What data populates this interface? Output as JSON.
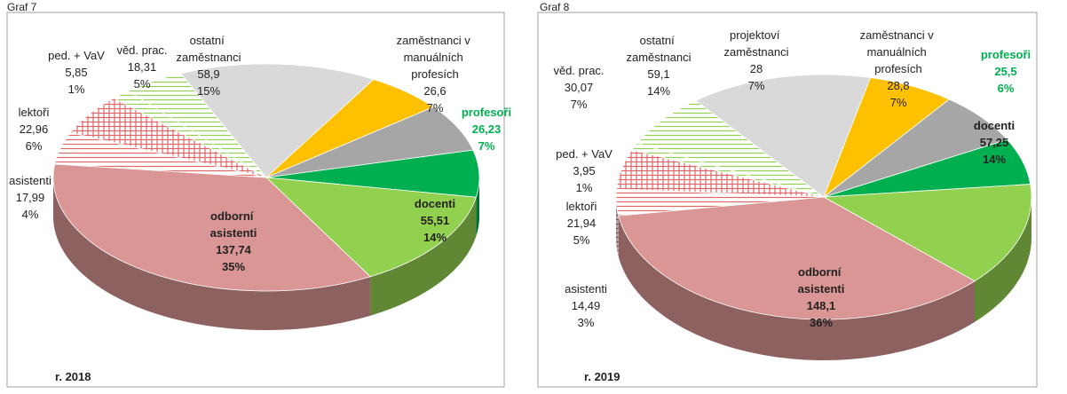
{
  "chart_data": [
    {
      "type": "pie3d",
      "title": "Graf 7",
      "note": "r. 2018",
      "categories": [
        "profesoři",
        "docenti",
        "odborní asistenti",
        "asistenti",
        "lektoři",
        "ped. + VaV",
        "věd. prac.",
        "ostatní zaměstnanci",
        null,
        "zaměstnanci v manuálních profesích"
      ],
      "values": [
        26.23,
        55.51,
        137.74,
        17.99,
        22.96,
        5.85,
        18.31,
        58.9,
        23.4,
        26.6
      ],
      "value_labels": [
        "26,23",
        "55,51",
        "137,74",
        "17,99",
        "22,96",
        "5,85",
        "18,31",
        "58,9",
        null,
        "26,6"
      ],
      "percents": [
        7,
        14,
        35,
        4,
        6,
        1,
        5,
        15,
        null,
        7
      ],
      "percent_labels": [
        "7%",
        "14%",
        "35%",
        "4%",
        "6%",
        "1%",
        "5%",
        "15%",
        null,
        "7%"
      ],
      "colors": [
        "#00b050",
        "#92d050",
        "#d99694",
        "#e06666",
        "#e06666",
        "#92d050",
        "#92d050",
        "#d9d9d9",
        "#ffc000",
        "#a6a6a6"
      ],
      "hatch": [
        null,
        null,
        null,
        "lines",
        "grid",
        "lines",
        "lines",
        null,
        null,
        null
      ]
    },
    {
      "type": "pie3d",
      "title": "Graf 8",
      "note": "r. 2019",
      "categories": [
        "profesoři",
        "docenti",
        "odborní asistenti",
        "asistenti",
        "lektoři",
        "ped. + VaV",
        "věd. prac.",
        "ostatní zaměstnanci",
        "projektoví zaměstnanci",
        "zaměstnanci v manuálních profesích"
      ],
      "values": [
        25.5,
        57.25,
        148.1,
        14.49,
        21.94,
        3.95,
        30.07,
        59.1,
        28,
        28.8
      ],
      "value_labels": [
        "25,5",
        "57,25",
        "148,1",
        "14,49",
        "21,94",
        "3,95",
        "30,07",
        "59,1",
        "28",
        "28,8"
      ],
      "percents": [
        6,
        14,
        36,
        3,
        5,
        1,
        7,
        14,
        7,
        7
      ],
      "percent_labels": [
        "6%",
        "14%",
        "36%",
        "3%",
        "5%",
        "1%",
        "7%",
        "14%",
        "7%",
        "7%"
      ],
      "colors": [
        "#00b050",
        "#92d050",
        "#d99694",
        "#e06666",
        "#e06666",
        "#92d050",
        "#92d050",
        "#d9d9d9",
        "#ffc000",
        "#a6a6a6"
      ],
      "hatch": [
        null,
        null,
        null,
        "lines",
        "grid",
        "lines",
        "lines",
        null,
        null,
        null
      ]
    }
  ]
}
